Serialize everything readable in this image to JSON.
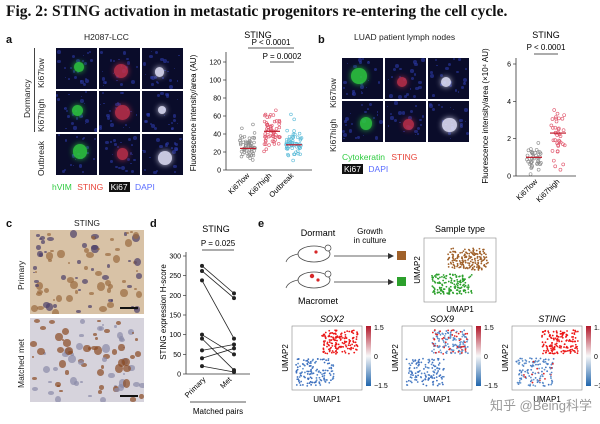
{
  "figure_title": "Fig. 2: STING activation in metastatic progenitors re-entering the cell cycle.",
  "panels": {
    "a": {
      "label": "a",
      "header": "H2087-LCC",
      "row_group": "Dormancy",
      "rows": [
        "Ki67low",
        "Ki67high",
        "Outbreak"
      ],
      "stain_legend": [
        "hVIM",
        "STING",
        "Ki67",
        "DAPI"
      ],
      "legend_colors": [
        "#2ecc40",
        "#e8443a",
        "#ffffff",
        "#5a6cff"
      ]
    },
    "a_chart": {
      "title": "STING",
      "ylabel": "Fluorescence intensity/area (AU)",
      "categories": [
        "Ki67low",
        "Ki67high",
        "Outbreak"
      ],
      "pvalues": [
        "P < 0.0001",
        "P = 0.0002"
      ]
    },
    "b": {
      "label": "b",
      "header": "LUAD patient lymph nodes",
      "rows": [
        "Ki67low",
        "Ki67high"
      ],
      "stain_legend": [
        "Cytokeratin",
        "STING",
        "Ki67",
        "DAPI"
      ]
    },
    "b_chart": {
      "title": "STING",
      "ylabel": "Fluorescence intensity/area (×10⁴ AU)",
      "categories": [
        "Ki67low",
        "Ki67high"
      ],
      "pvalue": "P < 0.0001",
      "yticks": [
        "0",
        "2",
        "4",
        "6"
      ]
    },
    "c": {
      "label": "c",
      "header": "STING",
      "rows": [
        "Primary",
        "Matched met"
      ]
    },
    "d": {
      "label": "d",
      "title": "STING",
      "ylabel": "STING expression H-score",
      "pvalue": "P = 0.025",
      "categories": [
        "Primary",
        "Met"
      ],
      "xlabel": "Matched pairs",
      "yticks": [
        "0",
        "50",
        "100",
        "150",
        "200",
        "250",
        "300"
      ]
    },
    "e": {
      "label": "e",
      "dormant": "Dormant",
      "growth": "Growth in culture",
      "macromet": "Macromet",
      "sample_type": "Sample type",
      "umap1": "UMAP1",
      "umap2": "UMAP2",
      "genes": [
        "SOX2",
        "SOX9",
        "STING"
      ],
      "colorbar_ticks": [
        "1.5",
        "0",
        "−1.5"
      ],
      "dormant_color": "#a0612a",
      "macromet_color": "#2ca02c"
    }
  },
  "chart_data": [
    {
      "type": "scatter",
      "title": "STING",
      "ylabel": "Fluorescence intensity/area (AU)",
      "categories": [
        "Ki67low",
        "Ki67high",
        "Outbreak"
      ],
      "means": [
        24,
        43,
        28
      ],
      "ylim": [
        0,
        120
      ],
      "yticks": [
        0,
        20,
        40,
        60,
        80,
        100,
        120
      ],
      "pvalues": [
        "P < 0.0001",
        "P = 0.0002"
      ]
    },
    {
      "type": "scatter",
      "title": "STING",
      "ylabel": "Fluorescence intensity/area (×10⁴ AU)",
      "categories": [
        "Ki67low",
        "Ki67high"
      ],
      "means": [
        1.0,
        2.3
      ],
      "ylim": [
        0,
        6
      ],
      "pvalue": "P < 0.0001"
    },
    {
      "type": "line",
      "title": "STING",
      "ylabel": "STING expression H-score",
      "categories": [
        "Primary",
        "Met"
      ],
      "series": [
        {
          "values": [
            275,
            205
          ]
        },
        {
          "values": [
            262,
            193
          ]
        },
        {
          "values": [
            238,
            90
          ]
        },
        {
          "values": [
            100,
            50
          ]
        },
        {
          "values": [
            90,
            10
          ]
        },
        {
          "values": [
            60,
            75
          ]
        },
        {
          "values": [
            40,
            65
          ]
        },
        {
          "values": [
            20,
            5
          ]
        }
      ],
      "ylim": [
        0,
        300
      ],
      "pvalue": "P = 0.025",
      "xlabel": "Matched pairs"
    }
  ],
  "watermark": "知乎 @Being科学"
}
